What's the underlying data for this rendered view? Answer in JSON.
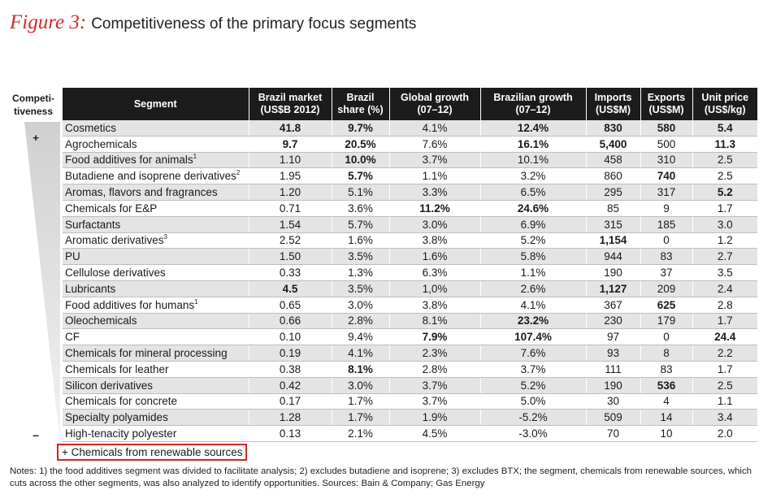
{
  "title": {
    "figure_label": "Figure 3:",
    "text": "Competitiveness of the primary focus segments"
  },
  "competitiveness": {
    "header_line1": "Competi-",
    "header_line2": "tiveness",
    "top_marker": "+",
    "bottom_marker": "–"
  },
  "chart_data": {
    "type": "table",
    "columns": [
      {
        "line1": "Segment",
        "line2": ""
      },
      {
        "line1": "Brazil market",
        "line2": "(US$B 2012)"
      },
      {
        "line1": "Brazil",
        "line2": "share (%)"
      },
      {
        "line1": "Global growth",
        "line2": "(07–12)"
      },
      {
        "line1": "Brazilian growth",
        "line2": "(07–12)"
      },
      {
        "line1": "Imports",
        "line2": "(US$M)"
      },
      {
        "line1": "Exports",
        "line2": "(US$M)"
      },
      {
        "line1": "Unit price",
        "line2": "(US$/kg)"
      }
    ],
    "rows": [
      {
        "segment": "Cosmetics",
        "sup": "",
        "values": [
          "41.8",
          "9.7%",
          "4.1%",
          "12.4%",
          "830",
          "580",
          "5.4"
        ],
        "bold": [
          true,
          true,
          false,
          true,
          true,
          true,
          true
        ]
      },
      {
        "segment": "Agrochemicals",
        "sup": "",
        "values": [
          "9.7",
          "20.5%",
          "7.6%",
          "16.1%",
          "5,400",
          "500",
          "11.3"
        ],
        "bold": [
          true,
          true,
          false,
          true,
          true,
          false,
          true
        ]
      },
      {
        "segment": "Food additives for animals",
        "sup": "1",
        "values": [
          "1.10",
          "10.0%",
          "3.7%",
          "10.1%",
          "458",
          "310",
          "2.5"
        ],
        "bold": [
          false,
          true,
          false,
          false,
          false,
          false,
          false
        ]
      },
      {
        "segment": "Butadiene and isoprene derivatives",
        "sup": "2",
        "values": [
          "1.95",
          "5.7%",
          "1.1%",
          "3.2%",
          "860",
          "740",
          "2.5"
        ],
        "bold": [
          false,
          true,
          false,
          false,
          false,
          true,
          false
        ]
      },
      {
        "segment": "Aromas, flavors and fragrances",
        "sup": "",
        "values": [
          "1.20",
          "5.1%",
          "3.3%",
          "6.5%",
          "295",
          "317",
          "5.2"
        ],
        "bold": [
          false,
          false,
          false,
          false,
          false,
          false,
          true
        ]
      },
      {
        "segment": "Chemicals for E&P",
        "sup": "",
        "values": [
          "0.71",
          "3.6%",
          "11.2%",
          "24.6%",
          "85",
          "9",
          "1.7"
        ],
        "bold": [
          false,
          false,
          true,
          true,
          false,
          false,
          false
        ]
      },
      {
        "segment": "Surfactants",
        "sup": "",
        "values": [
          "1.54",
          "5.7%",
          "3.0%",
          "6.9%",
          "315",
          "185",
          "3.0"
        ],
        "bold": [
          false,
          false,
          false,
          false,
          false,
          false,
          false
        ]
      },
      {
        "segment": "Aromatic derivatives",
        "sup": "3",
        "values": [
          "2.52",
          "1.6%",
          "3.8%",
          "5.2%",
          "1,154",
          "0",
          "1.2"
        ],
        "bold": [
          false,
          false,
          false,
          false,
          true,
          false,
          false
        ]
      },
      {
        "segment": "PU",
        "sup": "",
        "values": [
          "1.50",
          "3.5%",
          "1.6%",
          "5.8%",
          "944",
          "83",
          "2.7"
        ],
        "bold": [
          false,
          false,
          false,
          false,
          false,
          false,
          false
        ]
      },
      {
        "segment": "Cellulose derivatives",
        "sup": "",
        "values": [
          "0.33",
          "1.3%",
          "6.3%",
          "1.1%",
          "190",
          "37",
          "3.5"
        ],
        "bold": [
          false,
          false,
          false,
          false,
          false,
          false,
          false
        ]
      },
      {
        "segment": "Lubricants",
        "sup": "",
        "values": [
          "4.5",
          "3.5%",
          "1,0%",
          "2.6%",
          "1,127",
          "209",
          "2.4"
        ],
        "bold": [
          true,
          false,
          false,
          false,
          true,
          false,
          false
        ]
      },
      {
        "segment": "Food additives for humans",
        "sup": "1",
        "values": [
          "0.65",
          "3.0%",
          "3.8%",
          "4.1%",
          "367",
          "625",
          "2.8"
        ],
        "bold": [
          false,
          false,
          false,
          false,
          false,
          true,
          false
        ]
      },
      {
        "segment": "Oleochemicals",
        "sup": "",
        "values": [
          "0.66",
          "2.8%",
          "8.1%",
          "23.2%",
          "230",
          "179",
          "1.7"
        ],
        "bold": [
          false,
          false,
          false,
          true,
          false,
          false,
          false
        ]
      },
      {
        "segment": "CF",
        "sup": "",
        "values": [
          "0.10",
          "9.4%",
          "7.9%",
          "107.4%",
          "97",
          "0",
          "24.4"
        ],
        "bold": [
          false,
          false,
          true,
          true,
          false,
          false,
          true
        ]
      },
      {
        "segment": "Chemicals for mineral processing",
        "sup": "",
        "values": [
          "0.19",
          "4.1%",
          "2.3%",
          "7.6%",
          "93",
          "8",
          "2.2"
        ],
        "bold": [
          false,
          false,
          false,
          false,
          false,
          false,
          false
        ]
      },
      {
        "segment": "Chemicals for leather",
        "sup": "",
        "values": [
          "0.38",
          "8.1%",
          "2.8%",
          "3.7%",
          "111",
          "83",
          "1.7"
        ],
        "bold": [
          false,
          true,
          false,
          false,
          false,
          false,
          false
        ]
      },
      {
        "segment": "Silicon derivatives",
        "sup": "",
        "values": [
          "0.42",
          "3.0%",
          "3.7%",
          "5.2%",
          "190",
          "536",
          "2.5"
        ],
        "bold": [
          false,
          false,
          false,
          false,
          false,
          true,
          false
        ]
      },
      {
        "segment": "Chemicals for concrete",
        "sup": "",
        "values": [
          "0.17",
          "1.7%",
          "3.7%",
          "5.0%",
          "30",
          "4",
          "1.1"
        ],
        "bold": [
          false,
          false,
          false,
          false,
          false,
          false,
          false
        ]
      },
      {
        "segment": "Specialty polyamides",
        "sup": "",
        "values": [
          "1.28",
          "1.7%",
          "1.9%",
          "-5.2%",
          "509",
          "14",
          "3.4"
        ],
        "bold": [
          false,
          false,
          false,
          false,
          false,
          false,
          false
        ]
      },
      {
        "segment": "High-tenacity polyester",
        "sup": "",
        "values": [
          "0.13",
          "2.1%",
          "4.5%",
          "-3.0%",
          "70",
          "10",
          "2.0"
        ],
        "bold": [
          false,
          false,
          false,
          false,
          false,
          false,
          false
        ]
      }
    ]
  },
  "renewable_note": "+ Chemicals from renewable sources",
  "notes": "Notes: 1) the food additives segment was divided to facilitate analysis; 2) excludes butadiene and isoprene; 3) excludes BTX; the segment, chemicals from renewable sources, which cuts across the other segments, was also analyzed to identify opportunities. Sources: Bain & Company; Gas Energy",
  "colors": {
    "title_red": "#d9262b",
    "header_bg": "#1c1c1c",
    "stripe": "#e4e4e4",
    "highlight_box": "#e02020",
    "wedge": "#d6d6d6"
  }
}
